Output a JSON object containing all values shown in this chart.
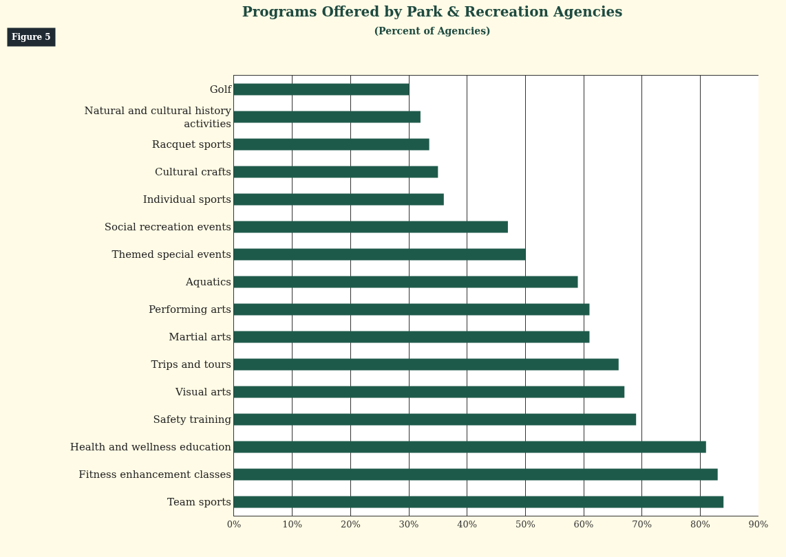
{
  "chart_data": {
    "type": "bar",
    "orientation": "horizontal",
    "title": "Programs Offered by Park & Recreation Agencies",
    "subtitle": "(Percent of Agencies)",
    "annotations": [
      "Figure 5"
    ],
    "categories": [
      "Golf",
      "Natural and cultural history activities",
      "Racquet sports",
      "Cultural crafts",
      "Individual sports",
      "Social recreation events",
      "Themed special events",
      "Aquatics",
      "Performing arts",
      "Martial arts",
      "Trips and tours",
      "Visual arts",
      "Safety training",
      "Health and wellness education",
      "Fitness enhancement classes",
      "Team sports"
    ],
    "values": [
      30,
      32,
      33.5,
      35,
      36,
      47,
      50,
      59,
      61,
      61,
      66,
      67,
      69,
      81,
      83,
      84
    ],
    "color": "#1e5a4a",
    "xlim": [
      0,
      90
    ],
    "xticks": [
      {
        "value": 0,
        "label": "0%"
      },
      {
        "value": 10,
        "label": "10%"
      },
      {
        "value": 20,
        "label": "20%"
      },
      {
        "value": 30,
        "label": "30%"
      },
      {
        "value": 40,
        "label": "40%"
      },
      {
        "value": 50,
        "label": "50%"
      },
      {
        "value": 60,
        "label": "60%"
      },
      {
        "value": 70,
        "label": "70%"
      },
      {
        "value": 80,
        "label": "80%"
      },
      {
        "value": 90,
        "label": "90%"
      }
    ],
    "grid": "x",
    "legend": false
  }
}
